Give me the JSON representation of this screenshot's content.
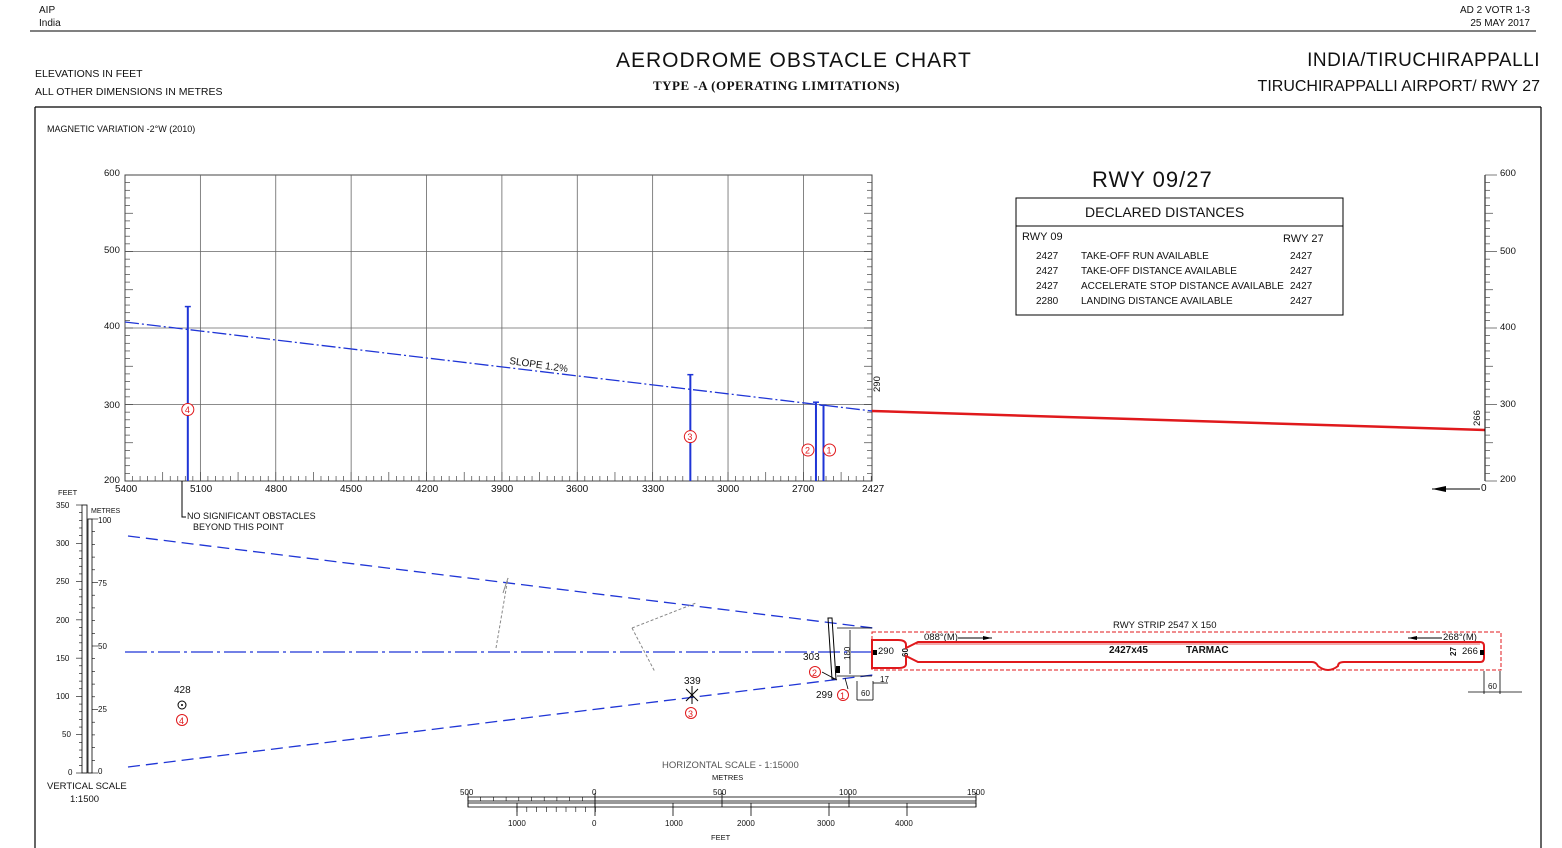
{
  "header": {
    "left_line1": "AIP",
    "left_line2": "India",
    "right_line1": "AD 2 VOTR 1-3",
    "right_line2": "25 MAY 2017"
  },
  "title": {
    "main": "AERODROME OBSTACLE CHART",
    "sub": "TYPE -A (OPERATING LIMITATIONS)",
    "location": "INDIA/TIRUCHIRAPPALLI",
    "airport": "TIRUCHIRAPPALLI AIRPORT/ RWY 27"
  },
  "notes": {
    "elevations": "ELEVATIONS IN FEET",
    "dimensions": "ALL OTHER DIMENSIONS IN METRES",
    "magvar": "MAGNETIC VARIATION -2°W (2010)",
    "slope": "SLOPE 1.2%",
    "no_obstacles_1": "NO SIGNIFICANT OBSTACLES",
    "no_obstacles_2": "BEYOND THIS POINT"
  },
  "declared_distances": {
    "runway_title": "RWY 09/27",
    "table_title": "DECLARED DISTANCES",
    "col_left": "RWY 09",
    "col_right": "RWY 27",
    "rows": [
      {
        "left": "2427",
        "label": "TAKE-OFF RUN AVAILABLE",
        "right": "2427"
      },
      {
        "left": "2427",
        "label": "TAKE-OFF DISTANCE AVAILABLE",
        "right": "2427"
      },
      {
        "left": "2427",
        "label": "ACCELERATE STOP DISTANCE AVAILABLE",
        "right": "2427"
      },
      {
        "left": "2280",
        "label": "LANDING DISTANCE AVAILABLE",
        "right": "2427"
      }
    ]
  },
  "profile": {
    "y_ticks": [
      "600",
      "500",
      "400",
      "300",
      "200"
    ],
    "x_ticks": [
      "5400",
      "5100",
      "4800",
      "4500",
      "4200",
      "3900",
      "3600",
      "3300",
      "3000",
      "2700",
      "2427"
    ],
    "right_x_label": "0",
    "rwy_elev_left": "290",
    "rwy_elev_right": "266",
    "obstacles": [
      {
        "id": "1",
        "distance_m": 2620,
        "elevation_ft": 299
      },
      {
        "id": "2",
        "distance_m": 2650,
        "elevation_ft": 303
      },
      {
        "id": "3",
        "distance_m": 3150,
        "elevation_ft": 339
      },
      {
        "id": "4",
        "distance_m": 5150,
        "elevation_ft": 428
      }
    ]
  },
  "plan": {
    "vertical_scale_feet_label": "FEET",
    "vertical_scale_metres_label": "METRES",
    "feet_ticks": [
      "350",
      "300",
      "250",
      "200",
      "150",
      "100",
      "50",
      "0"
    ],
    "metre_ticks": [
      "100",
      "75",
      "50",
      "25",
      "0"
    ],
    "vertical_scale_title": "VERTICAL SCALE",
    "vertical_scale_ratio": "1:1500",
    "obstacle_labels": {
      "o4_elev": "428",
      "o3_elev": "339",
      "o2_elev": "303",
      "o1_elev": "299"
    },
    "strip_label": "RWY STRIP 2547 X 150",
    "runway_label": "2427x45",
    "surface_label": "TARMAC",
    "bearing_09": "088°(M)",
    "bearing_27": "268°(M)",
    "thr_elev_left": "290",
    "thr_elev_right": "266",
    "dim_180": "180",
    "dim_60_a": "60",
    "dim_60_b": "60",
    "dim_60_c": "60",
    "dim_17": "17",
    "dim_27": "27"
  },
  "horizontal_scale": {
    "title": "HORIZONTAL SCALE - 1:15000",
    "metres_label": "METRES",
    "feet_label": "FEET",
    "metre_ticks": [
      "500",
      "0",
      "500",
      "1000",
      "1500"
    ],
    "feet_ticks": [
      "1000",
      "0",
      "1000",
      "2000",
      "3000",
      "4000"
    ]
  },
  "colors": {
    "obstacle_blue": "#1f35d6",
    "runway_red": "#e0191c",
    "grid": "#555555"
  }
}
